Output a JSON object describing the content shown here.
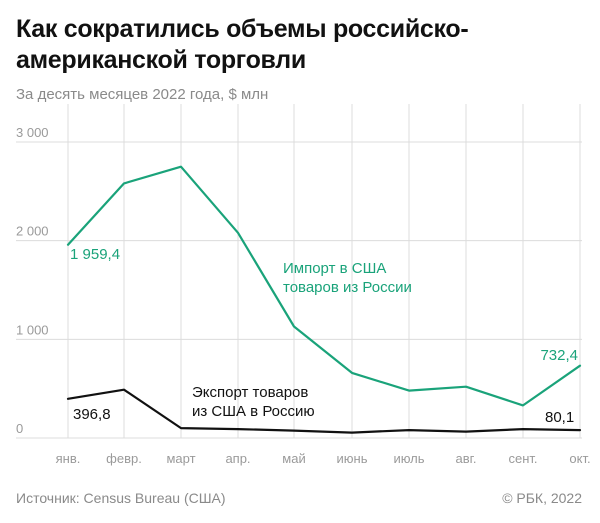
{
  "header": {
    "title": "Как сократились объемы российско-американской торговли",
    "subtitle": "За десять месяцев 2022 года, $ млн"
  },
  "footer": {
    "source": "Источник: Census Bureau (США)",
    "copyright": "© РБК, 2022"
  },
  "colors": {
    "import": "#1aa37a",
    "export": "#111111",
    "grid": "#dcdcdc"
  },
  "chart_data": {
    "type": "line",
    "title": "Как сократились объемы российско-американской торговли",
    "subtitle": "За десять месяцев 2022 года, $ млн",
    "xlabel": "",
    "ylabel": "",
    "ylim": [
      0,
      3000
    ],
    "yticks": [
      0,
      1000,
      2000,
      3000
    ],
    "ytick_labels": [
      "0",
      "1 000",
      "2 000",
      "3 000"
    ],
    "categories": [
      "янв.",
      "февр.",
      "март",
      "апр.",
      "май",
      "июнь",
      "июль",
      "авг.",
      "сент.",
      "окт."
    ],
    "grid": true,
    "legend": "inline",
    "series": [
      {
        "name": "Импорт в США товаров из России",
        "name_lines": [
          "Импорт в США",
          "товаров из России"
        ],
        "color": "#1aa37a",
        "values": [
          1959.4,
          2580,
          2750,
          2080,
          1130,
          660,
          480,
          520,
          330,
          732.4
        ],
        "labels": [
          "1 959,4",
          "732,4"
        ]
      },
      {
        "name": "Экспорт товаров из США в Россию",
        "name_lines": [
          "Экспорт товаров",
          "из США в Россию"
        ],
        "color": "#111111",
        "values": [
          396.8,
          490,
          100,
          90,
          75,
          55,
          80,
          65,
          90,
          80.1
        ],
        "labels": [
          "396,8",
          "80,1"
        ]
      }
    ]
  }
}
